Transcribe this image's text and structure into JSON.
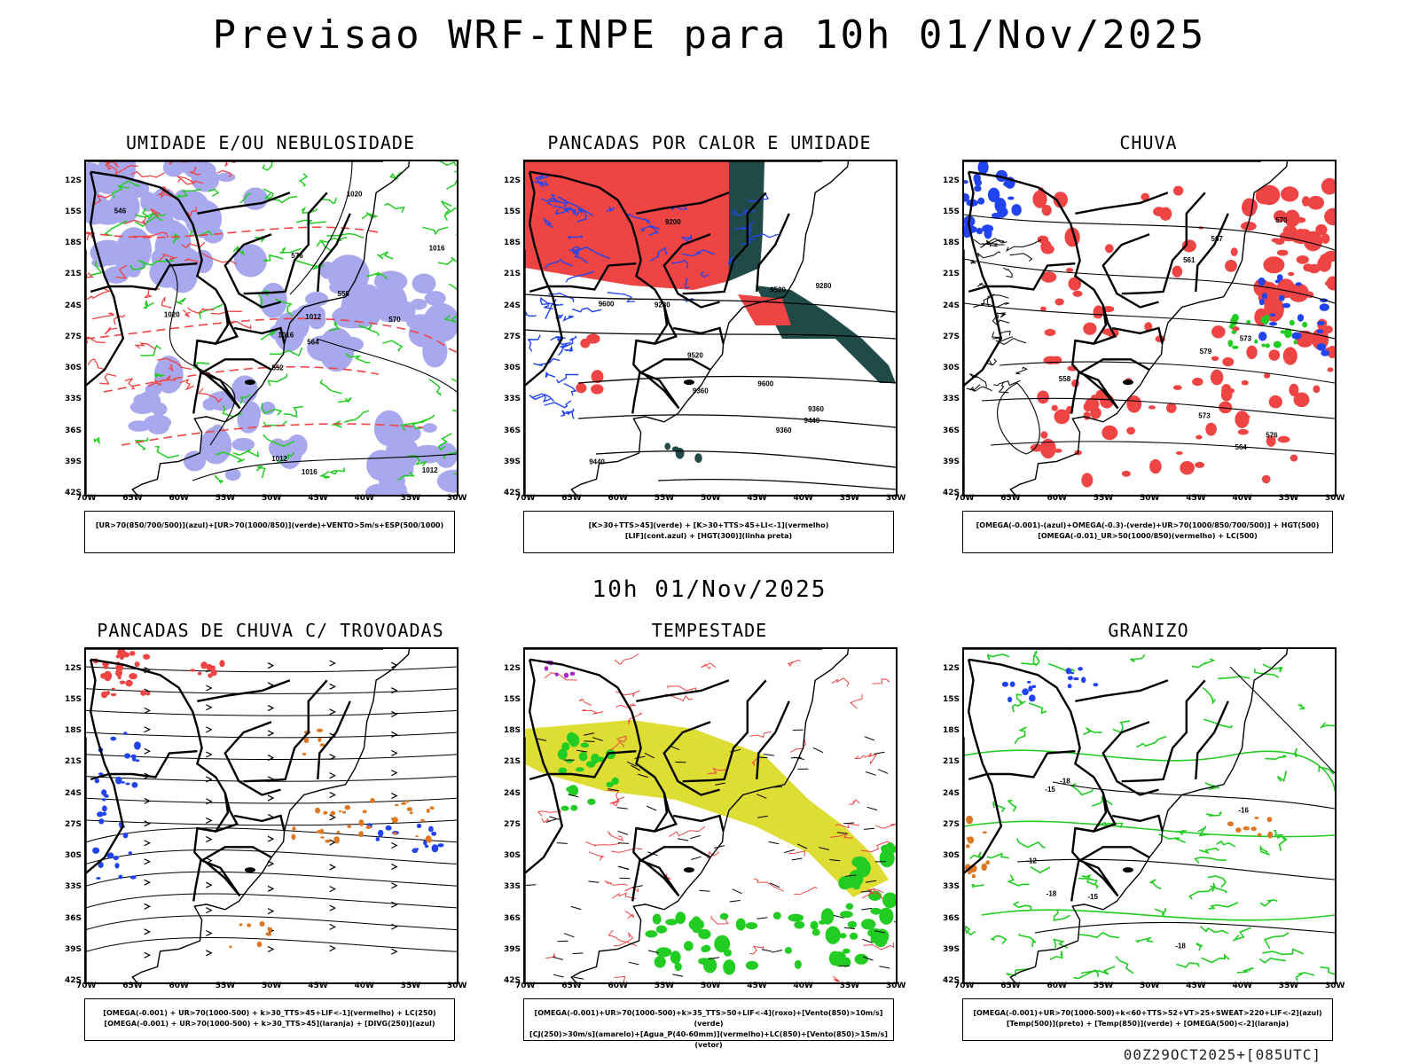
{
  "title": "Previsao WRF-INPE  para 10h 01/Nov/2025",
  "mid_title": "10h 01/Nov/2025",
  "footer": "00Z29OCT2025+[085UTC]",
  "lat_labels": [
    "12S",
    "15S",
    "18S",
    "21S",
    "24S",
    "27S",
    "30S",
    "33S",
    "36S",
    "39S",
    "42S"
  ],
  "lon_labels": [
    "70W",
    "65W",
    "60W",
    "55W",
    "50W",
    "45W",
    "40W",
    "35W",
    "30W"
  ],
  "panels": [
    {
      "title": "UMIDADE E/OU NEBULOSIDADE",
      "legend": [
        "[UR>70(850/700/500)](azul)+[UR>70(1000/850)](verde)+VENTO>5m/s+ESP(500/1000)"
      ],
      "contour_labels": [
        "1012",
        "1012",
        "1016",
        "1020",
        "1020",
        "1016",
        "1016",
        "1012",
        "576",
        "570",
        "564",
        "558",
        "552",
        "546"
      ]
    },
    {
      "title": "PANCADAS POR CALOR E UMIDADE",
      "legend": [
        "[K>30+TTS>45](verde) + [K>30+TTS>45+LI<-1](vermelho)",
        "[LIF](cont.azul) + [HGT(300)](linha preta)"
      ],
      "contour_labels": [
        "9600",
        "9520",
        "9440",
        "9360",
        "9360",
        "9280",
        "9200",
        "9280",
        "9360",
        "9440",
        "9520",
        "9600"
      ]
    },
    {
      "title": "CHUVA",
      "legend": [
        "[OMEGA(-0.001)-(azul)+OMEGA(-0.3)-(verde)+UR>70(1000/850/700/500)] + HGT(500)",
        "[OMEGA(-0.01)_UR>50(1000/850)(vermelho) + LC(500)"
      ],
      "contour_labels": [
        "573",
        "570",
        "567",
        "564",
        "561",
        "558",
        "573",
        "576",
        "579"
      ]
    },
    {
      "title": "PANCADAS DE CHUVA C/ TROVOADAS",
      "legend": [
        "[OMEGA(-0.001) + UR>70(1000-500) + k>30_TTS>45+LIF<-1](vermelho) + LC(250)",
        "[OMEGA(-0.001) + UR>70(1000-500) + k>30_TTS>45](laranja) + [DIVG(250)](azul)"
      ],
      "contour_labels": []
    },
    {
      "title": "TEMPESTADE",
      "legend": [
        "[OMEGA(-0.001)+UR>70(1000-500)+k>35_TTS>50+LIF<-4](roxo)+[Vento(850)>10m/s](verde)",
        "[CJ(250)>30m/s](amarelo)+[Agua_P(40-60mm)](vermelho)+LC(850)+[Vento(850)>15m/s](vetor)"
      ],
      "contour_labels": []
    },
    {
      "title": "GRANIZO",
      "legend": [
        "[OMEGA(-0.001)+UR>70(1000-500)+k<60+TTS>52+VT>25+SWEAT>220+LIF<-2](azul)",
        "[Temp(500)](preto) + [Temp(850)](verde) + [OMEGA(500)<-2](laranja)"
      ],
      "contour_labels": [
        "-12",
        "-15",
        "-18",
        "-15",
        "-18",
        "-18",
        "-16"
      ]
    }
  ],
  "colors": {
    "lavender": "#a8a8ee",
    "green": "#22cc22",
    "red": "#ee4444",
    "blue": "#2244ee",
    "darkteal": "#1f4a48",
    "yellow": "#dddd33",
    "orange": "#dd7722",
    "purple": "#aa22cc"
  }
}
